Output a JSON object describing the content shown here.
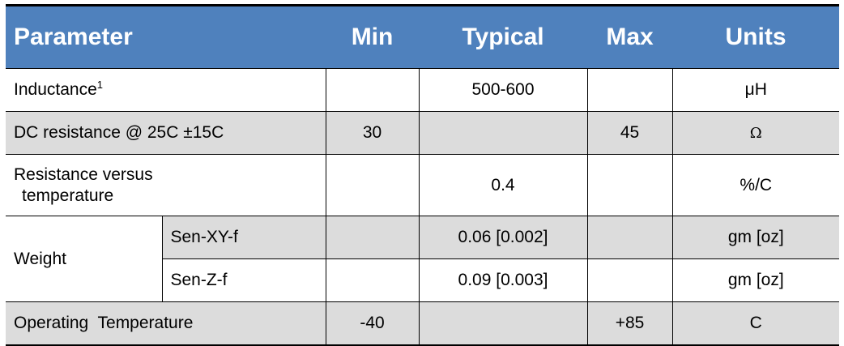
{
  "header": {
    "parameter": "Parameter",
    "min": "Min",
    "typical": "Typical",
    "max": "Max",
    "units": "Units"
  },
  "rows": {
    "inductance": {
      "label": "Inductance",
      "footnote": "1",
      "min": "",
      "typical": "500-600",
      "max": "",
      "units": "μH"
    },
    "dc_resistance": {
      "label": "DC resistance @ 25C ±15C",
      "min": "30",
      "typical": "",
      "max": "45",
      "units": "Ω"
    },
    "resistance_temp": {
      "label_line1": "Resistance versus",
      "label_line2": "temperature",
      "min": "",
      "typical": "0.4",
      "max": "",
      "units": "%/C"
    },
    "weight": {
      "label": "Weight",
      "xy": {
        "label": "Sen-XY-f",
        "min": "",
        "typical": "0.06 [0.002]",
        "max": "",
        "units": "gm [oz]"
      },
      "z": {
        "label": "Sen-Z-f",
        "min": "",
        "typical": "0.09 [0.003]",
        "max": "",
        "units": "gm [oz]"
      }
    },
    "operating_temp": {
      "label": "Operating  Temperature",
      "min": "-40",
      "typical": "",
      "max": "+85",
      "units": "C"
    }
  },
  "colors": {
    "header_bg": "#4f81bd",
    "header_text": "#ffffff",
    "shade": "#dcdcdc"
  }
}
